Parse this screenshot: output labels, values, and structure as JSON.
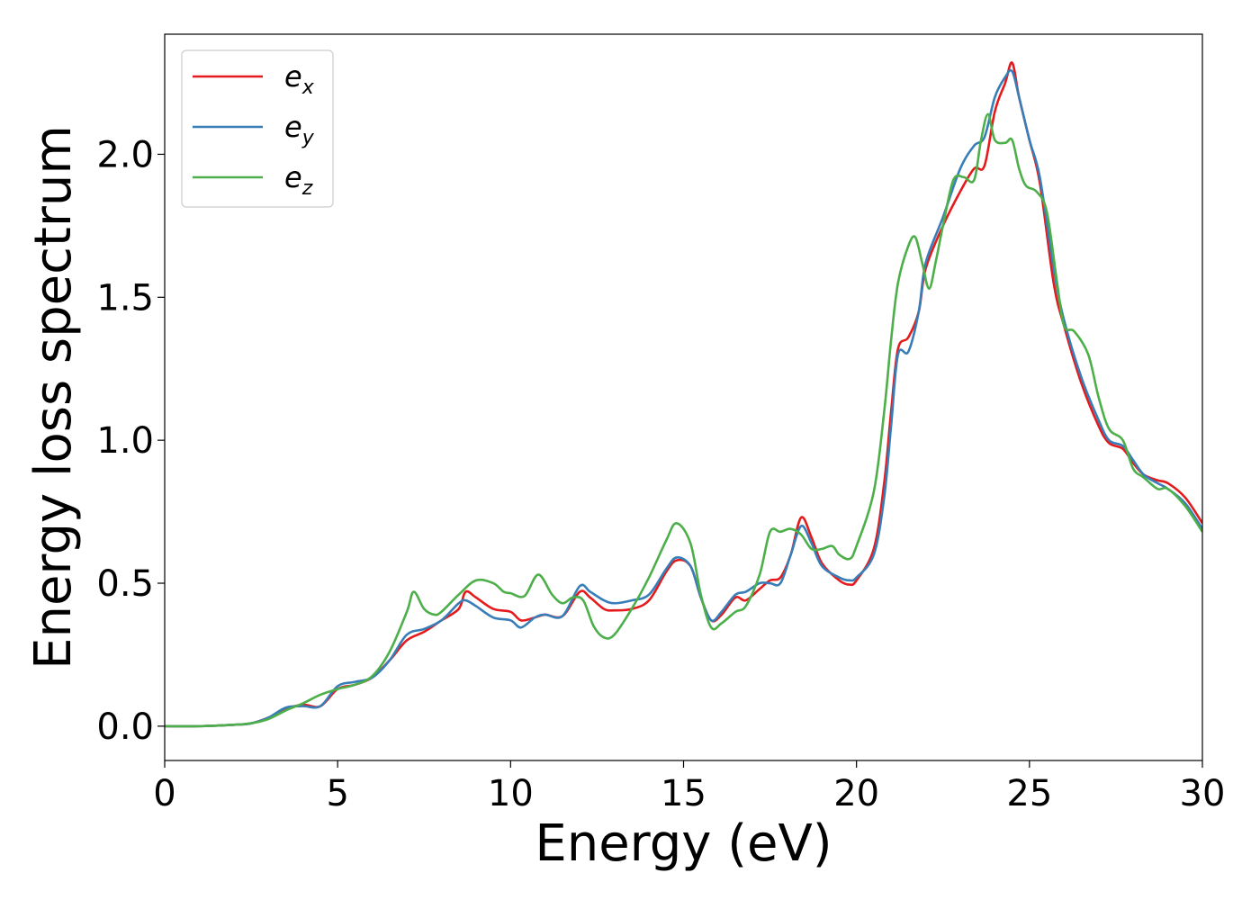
{
  "chart_data": {
    "type": "line",
    "title": "",
    "xlabel": "Energy (eV)",
    "ylabel": "Energy loss spectrum",
    "xlim": [
      0,
      30
    ],
    "ylim": [
      -0.12,
      2.42
    ],
    "xticks": [
      0,
      5,
      10,
      15,
      20,
      25,
      30
    ],
    "xtick_labels": [
      "0",
      "5",
      "10",
      "15",
      "20",
      "25",
      "30"
    ],
    "yticks": [
      0.0,
      0.5,
      1.0,
      1.5,
      2.0
    ],
    "ytick_labels": [
      "0.0",
      "0.5",
      "1.0",
      "1.5",
      "2.0"
    ],
    "grid": false,
    "legend": "top-left",
    "series": [
      {
        "name": "e_x",
        "label_base": "e",
        "label_sub": "x",
        "color": "#e41a1c",
        "points": [
          [
            0,
            0
          ],
          [
            1,
            0
          ],
          [
            2,
            0.005
          ],
          [
            2.5,
            0.01
          ],
          [
            3,
            0.03
          ],
          [
            3.5,
            0.06
          ],
          [
            4,
            0.075
          ],
          [
            4.5,
            0.07
          ],
          [
            5,
            0.13
          ],
          [
            5.5,
            0.145
          ],
          [
            6,
            0.17
          ],
          [
            6.5,
            0.23
          ],
          [
            7,
            0.3
          ],
          [
            7.5,
            0.33
          ],
          [
            8,
            0.37
          ],
          [
            8.5,
            0.41
          ],
          [
            8.7,
            0.47
          ],
          [
            9,
            0.45
          ],
          [
            9.5,
            0.41
          ],
          [
            10,
            0.4
          ],
          [
            10.3,
            0.37
          ],
          [
            10.7,
            0.38
          ],
          [
            11,
            0.39
          ],
          [
            11.5,
            0.385
          ],
          [
            12,
            0.47
          ],
          [
            12.3,
            0.45
          ],
          [
            12.7,
            0.41
          ],
          [
            13,
            0.405
          ],
          [
            13.5,
            0.41
          ],
          [
            14,
            0.44
          ],
          [
            14.5,
            0.54
          ],
          [
            14.8,
            0.58
          ],
          [
            15.2,
            0.56
          ],
          [
            15.5,
            0.45
          ],
          [
            15.8,
            0.37
          ],
          [
            16.1,
            0.39
          ],
          [
            16.5,
            0.45
          ],
          [
            16.8,
            0.44
          ],
          [
            17.2,
            0.48
          ],
          [
            17.5,
            0.51
          ],
          [
            17.8,
            0.52
          ],
          [
            18.1,
            0.6
          ],
          [
            18.4,
            0.73
          ],
          [
            18.7,
            0.66
          ],
          [
            19,
            0.57
          ],
          [
            19.5,
            0.51
          ],
          [
            19.8,
            0.495
          ],
          [
            20,
            0.51
          ],
          [
            20.5,
            0.62
          ],
          [
            20.8,
            0.85
          ],
          [
            21,
            1.1
          ],
          [
            21.2,
            1.32
          ],
          [
            21.5,
            1.36
          ],
          [
            21.8,
            1.45
          ],
          [
            22,
            1.6
          ],
          [
            22.5,
            1.75
          ],
          [
            23,
            1.87
          ],
          [
            23.4,
            1.95
          ],
          [
            23.7,
            1.96
          ],
          [
            24,
            2.15
          ],
          [
            24.3,
            2.25
          ],
          [
            24.5,
            2.32
          ],
          [
            24.7,
            2.2
          ],
          [
            25,
            2.05
          ],
          [
            25.3,
            1.9
          ],
          [
            25.7,
            1.55
          ],
          [
            26,
            1.4
          ],
          [
            26.5,
            1.2
          ],
          [
            27,
            1.05
          ],
          [
            27.3,
            0.99
          ],
          [
            27.7,
            0.97
          ],
          [
            28,
            0.92
          ],
          [
            28.3,
            0.88
          ],
          [
            28.7,
            0.86
          ],
          [
            29,
            0.85
          ],
          [
            29.5,
            0.8
          ],
          [
            30,
            0.71
          ]
        ]
      },
      {
        "name": "e_y",
        "label_base": "e",
        "label_sub": "y",
        "color": "#377eb8",
        "points": [
          [
            0,
            0
          ],
          [
            1,
            0
          ],
          [
            2,
            0.005
          ],
          [
            2.5,
            0.01
          ],
          [
            3,
            0.03
          ],
          [
            3.5,
            0.065
          ],
          [
            4,
            0.07
          ],
          [
            4.5,
            0.07
          ],
          [
            5,
            0.14
          ],
          [
            5.5,
            0.155
          ],
          [
            6,
            0.17
          ],
          [
            6.5,
            0.23
          ],
          [
            7,
            0.32
          ],
          [
            7.5,
            0.34
          ],
          [
            8,
            0.37
          ],
          [
            8.5,
            0.43
          ],
          [
            8.7,
            0.44
          ],
          [
            9,
            0.42
          ],
          [
            9.5,
            0.38
          ],
          [
            10,
            0.37
          ],
          [
            10.3,
            0.345
          ],
          [
            10.7,
            0.38
          ],
          [
            11,
            0.39
          ],
          [
            11.5,
            0.385
          ],
          [
            12,
            0.49
          ],
          [
            12.3,
            0.47
          ],
          [
            12.7,
            0.44
          ],
          [
            13,
            0.43
          ],
          [
            13.5,
            0.44
          ],
          [
            14,
            0.46
          ],
          [
            14.5,
            0.55
          ],
          [
            14.8,
            0.59
          ],
          [
            15.2,
            0.56
          ],
          [
            15.5,
            0.45
          ],
          [
            15.8,
            0.37
          ],
          [
            16.1,
            0.4
          ],
          [
            16.5,
            0.46
          ],
          [
            16.8,
            0.47
          ],
          [
            17.2,
            0.5
          ],
          [
            17.5,
            0.5
          ],
          [
            17.8,
            0.5
          ],
          [
            18.1,
            0.6
          ],
          [
            18.4,
            0.7
          ],
          [
            18.7,
            0.64
          ],
          [
            19,
            0.56
          ],
          [
            19.5,
            0.52
          ],
          [
            19.8,
            0.51
          ],
          [
            20,
            0.52
          ],
          [
            20.5,
            0.6
          ],
          [
            20.8,
            0.8
          ],
          [
            21,
            1.05
          ],
          [
            21.2,
            1.3
          ],
          [
            21.5,
            1.31
          ],
          [
            21.8,
            1.45
          ],
          [
            22,
            1.62
          ],
          [
            22.5,
            1.78
          ],
          [
            23,
            1.95
          ],
          [
            23.4,
            2.03
          ],
          [
            23.7,
            2.06
          ],
          [
            24,
            2.2
          ],
          [
            24.3,
            2.27
          ],
          [
            24.5,
            2.29
          ],
          [
            24.7,
            2.2
          ],
          [
            25,
            2.05
          ],
          [
            25.3,
            1.92
          ],
          [
            25.7,
            1.6
          ],
          [
            26,
            1.42
          ],
          [
            26.5,
            1.22
          ],
          [
            27,
            1.07
          ],
          [
            27.3,
            1.0
          ],
          [
            27.7,
            0.98
          ],
          [
            28,
            0.93
          ],
          [
            28.3,
            0.88
          ],
          [
            28.7,
            0.85
          ],
          [
            29,
            0.83
          ],
          [
            29.5,
            0.78
          ],
          [
            30,
            0.69
          ]
        ]
      },
      {
        "name": "e_z",
        "label_base": "e",
        "label_sub": "z",
        "color": "#4daf4a",
        "points": [
          [
            0,
            0
          ],
          [
            1,
            0
          ],
          [
            2,
            0.005
          ],
          [
            2.5,
            0.01
          ],
          [
            3,
            0.025
          ],
          [
            3.5,
            0.055
          ],
          [
            4,
            0.08
          ],
          [
            4.5,
            0.11
          ],
          [
            5,
            0.13
          ],
          [
            5.5,
            0.145
          ],
          [
            6,
            0.175
          ],
          [
            6.5,
            0.26
          ],
          [
            7,
            0.4
          ],
          [
            7.2,
            0.47
          ],
          [
            7.5,
            0.41
          ],
          [
            7.8,
            0.39
          ],
          [
            8,
            0.4
          ],
          [
            8.5,
            0.46
          ],
          [
            9,
            0.51
          ],
          [
            9.5,
            0.5
          ],
          [
            9.8,
            0.47
          ],
          [
            10,
            0.465
          ],
          [
            10.4,
            0.455
          ],
          [
            10.8,
            0.53
          ],
          [
            11.2,
            0.46
          ],
          [
            11.5,
            0.43
          ],
          [
            11.8,
            0.45
          ],
          [
            12.1,
            0.44
          ],
          [
            12.4,
            0.35
          ],
          [
            12.7,
            0.31
          ],
          [
            13,
            0.32
          ],
          [
            13.5,
            0.41
          ],
          [
            14,
            0.52
          ],
          [
            14.5,
            0.65
          ],
          [
            14.8,
            0.71
          ],
          [
            15.2,
            0.64
          ],
          [
            15.5,
            0.46
          ],
          [
            15.8,
            0.345
          ],
          [
            16.1,
            0.36
          ],
          [
            16.5,
            0.4
          ],
          [
            16.8,
            0.42
          ],
          [
            17.2,
            0.53
          ],
          [
            17.5,
            0.68
          ],
          [
            17.8,
            0.68
          ],
          [
            18.1,
            0.69
          ],
          [
            18.4,
            0.67
          ],
          [
            18.7,
            0.62
          ],
          [
            19,
            0.62
          ],
          [
            19.3,
            0.63
          ],
          [
            19.5,
            0.6
          ],
          [
            19.8,
            0.585
          ],
          [
            20,
            0.63
          ],
          [
            20.5,
            0.82
          ],
          [
            20.8,
            1.1
          ],
          [
            21,
            1.35
          ],
          [
            21.2,
            1.55
          ],
          [
            21.5,
            1.68
          ],
          [
            21.7,
            1.71
          ],
          [
            21.9,
            1.62
          ],
          [
            22.1,
            1.53
          ],
          [
            22.3,
            1.63
          ],
          [
            22.5,
            1.75
          ],
          [
            22.8,
            1.91
          ],
          [
            23.1,
            1.92
          ],
          [
            23.4,
            1.91
          ],
          [
            23.6,
            2.05
          ],
          [
            23.8,
            2.14
          ],
          [
            24,
            2.05
          ],
          [
            24.3,
            2.04
          ],
          [
            24.5,
            2.05
          ],
          [
            24.7,
            1.95
          ],
          [
            24.9,
            1.89
          ],
          [
            25.2,
            1.87
          ],
          [
            25.5,
            1.8
          ],
          [
            25.8,
            1.55
          ],
          [
            26,
            1.4
          ],
          [
            26.3,
            1.38
          ],
          [
            26.7,
            1.3
          ],
          [
            27,
            1.15
          ],
          [
            27.3,
            1.04
          ],
          [
            27.7,
            1.0
          ],
          [
            28,
            0.9
          ],
          [
            28.3,
            0.87
          ],
          [
            28.7,
            0.83
          ],
          [
            29,
            0.83
          ],
          [
            29.5,
            0.77
          ],
          [
            30,
            0.68
          ]
        ]
      }
    ]
  }
}
